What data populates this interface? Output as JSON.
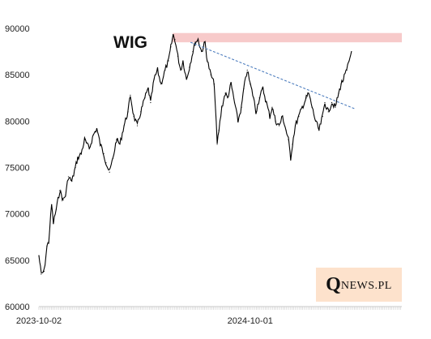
{
  "chart_data": {
    "type": "line",
    "title": "WIG",
    "xlabel": "",
    "ylabel": "",
    "ylim": [
      60000,
      90000
    ],
    "yticks": [
      90000,
      85000,
      80000,
      75000,
      70000,
      65000,
      60000
    ],
    "xticks": [
      "2023-10-02",
      "2024-10-01"
    ],
    "x_range": [
      "2023-10-02",
      "2025-06-20"
    ],
    "grid": false,
    "legend": "none",
    "colors": {
      "series": "#000000",
      "trendline": "#4a7bbd",
      "resistance": "#f4b8b8"
    },
    "series": [
      {
        "values": [
          [
            "2023-10-02",
            65500
          ],
          [
            "2023-10-06",
            63500
          ],
          [
            "2023-10-11",
            63800
          ],
          [
            "2023-10-16",
            66500
          ],
          [
            "2023-10-19",
            67000
          ],
          [
            "2023-10-24",
            71000
          ],
          [
            "2023-10-27",
            69000
          ],
          [
            "2023-11-01",
            70500
          ],
          [
            "2023-11-07",
            72500
          ],
          [
            "2023-11-13",
            71500
          ],
          [
            "2023-11-17",
            72000
          ],
          [
            "2023-11-22",
            74000
          ],
          [
            "2023-11-28",
            73500
          ],
          [
            "2023-12-04",
            75000
          ],
          [
            "2023-12-08",
            76000
          ],
          [
            "2023-12-14",
            76500
          ],
          [
            "2023-12-20",
            78000
          ],
          [
            "2023-12-28",
            77000
          ],
          [
            "2024-01-04",
            78500
          ],
          [
            "2024-01-10",
            79200
          ],
          [
            "2024-01-16",
            77500
          ],
          [
            "2024-01-22",
            76500
          ],
          [
            "2024-01-26",
            75500
          ],
          [
            "2024-02-01",
            74500
          ],
          [
            "2024-02-07",
            76000
          ],
          [
            "2024-02-13",
            78000
          ],
          [
            "2024-02-19",
            77500
          ],
          [
            "2024-02-26",
            79500
          ],
          [
            "2024-03-04",
            81000
          ],
          [
            "2024-03-08",
            82800
          ],
          [
            "2024-03-14",
            80500
          ],
          [
            "2024-03-20",
            79500
          ],
          [
            "2024-03-26",
            81000
          ],
          [
            "2024-04-02",
            82500
          ],
          [
            "2024-04-08",
            83500
          ],
          [
            "2024-04-12",
            82000
          ],
          [
            "2024-04-18",
            84500
          ],
          [
            "2024-04-24",
            85500
          ],
          [
            "2024-04-30",
            84000
          ],
          [
            "2024-05-07",
            85500
          ],
          [
            "2024-05-13",
            86500
          ],
          [
            "2024-05-17",
            88000
          ],
          [
            "2024-05-21",
            89300
          ],
          [
            "2024-05-24",
            88800
          ],
          [
            "2024-05-29",
            87000
          ],
          [
            "2024-06-03",
            85500
          ],
          [
            "2024-06-07",
            86500
          ],
          [
            "2024-06-13",
            84500
          ],
          [
            "2024-06-18",
            85800
          ],
          [
            "2024-06-24",
            87500
          ],
          [
            "2024-06-28",
            88500
          ],
          [
            "2024-07-03",
            88800
          ],
          [
            "2024-07-09",
            87500
          ],
          [
            "2024-07-15",
            88500
          ],
          [
            "2024-07-19",
            86500
          ],
          [
            "2024-07-25",
            85000
          ],
          [
            "2024-07-31",
            84000
          ],
          [
            "2024-08-05",
            77500
          ],
          [
            "2024-08-08",
            79000
          ],
          [
            "2024-08-13",
            81500
          ],
          [
            "2024-08-19",
            83000
          ],
          [
            "2024-08-23",
            82500
          ],
          [
            "2024-08-29",
            84000
          ],
          [
            "2024-09-04",
            82000
          ],
          [
            "2024-09-10",
            80000
          ],
          [
            "2024-09-16",
            81500
          ],
          [
            "2024-09-20",
            83500
          ],
          [
            "2024-09-26",
            85500
          ],
          [
            "2024-10-01",
            84000
          ],
          [
            "2024-10-07",
            82500
          ],
          [
            "2024-10-11",
            81000
          ],
          [
            "2024-10-17",
            82500
          ],
          [
            "2024-10-23",
            83500
          ],
          [
            "2024-10-29",
            82000
          ],
          [
            "2024-11-04",
            80500
          ],
          [
            "2024-11-08",
            81500
          ],
          [
            "2024-11-14",
            80000
          ],
          [
            "2024-11-20",
            79500
          ],
          [
            "2024-11-26",
            80500
          ],
          [
            "2024-12-02",
            79000
          ],
          [
            "2024-12-06",
            78000
          ],
          [
            "2024-12-10",
            76000
          ],
          [
            "2024-12-13",
            77500
          ],
          [
            "2024-12-18",
            79500
          ],
          [
            "2024-12-24",
            80500
          ],
          [
            "2024-12-30",
            81500
          ],
          [
            "2025-01-06",
            82500
          ],
          [
            "2025-01-10",
            83000
          ],
          [
            "2025-01-16",
            81500
          ],
          [
            "2025-01-22",
            80000
          ],
          [
            "2025-01-28",
            79000
          ],
          [
            "2025-02-03",
            80500
          ],
          [
            "2025-02-07",
            82000
          ],
          [
            "2025-02-13",
            81000
          ],
          [
            "2025-02-19",
            82000
          ],
          [
            "2025-02-25",
            81500
          ],
          [
            "2025-03-03",
            83000
          ],
          [
            "2025-03-07",
            84000
          ],
          [
            "2025-03-11",
            84500
          ],
          [
            "2025-03-17",
            85500
          ],
          [
            "2025-03-21",
            86500
          ],
          [
            "2025-03-25",
            87500
          ]
        ]
      }
    ],
    "trendline": {
      "from": [
        "2024-06-20",
        88500
      ],
      "to": [
        "2025-04-01",
        81300
      ]
    },
    "resistance_band": {
      "from": "2024-05-20",
      "to": "2025-06-20",
      "y": [
        88500,
        89500
      ]
    }
  },
  "branding": {
    "logo_big": "Q",
    "logo_small": "NEWS.PL"
  }
}
